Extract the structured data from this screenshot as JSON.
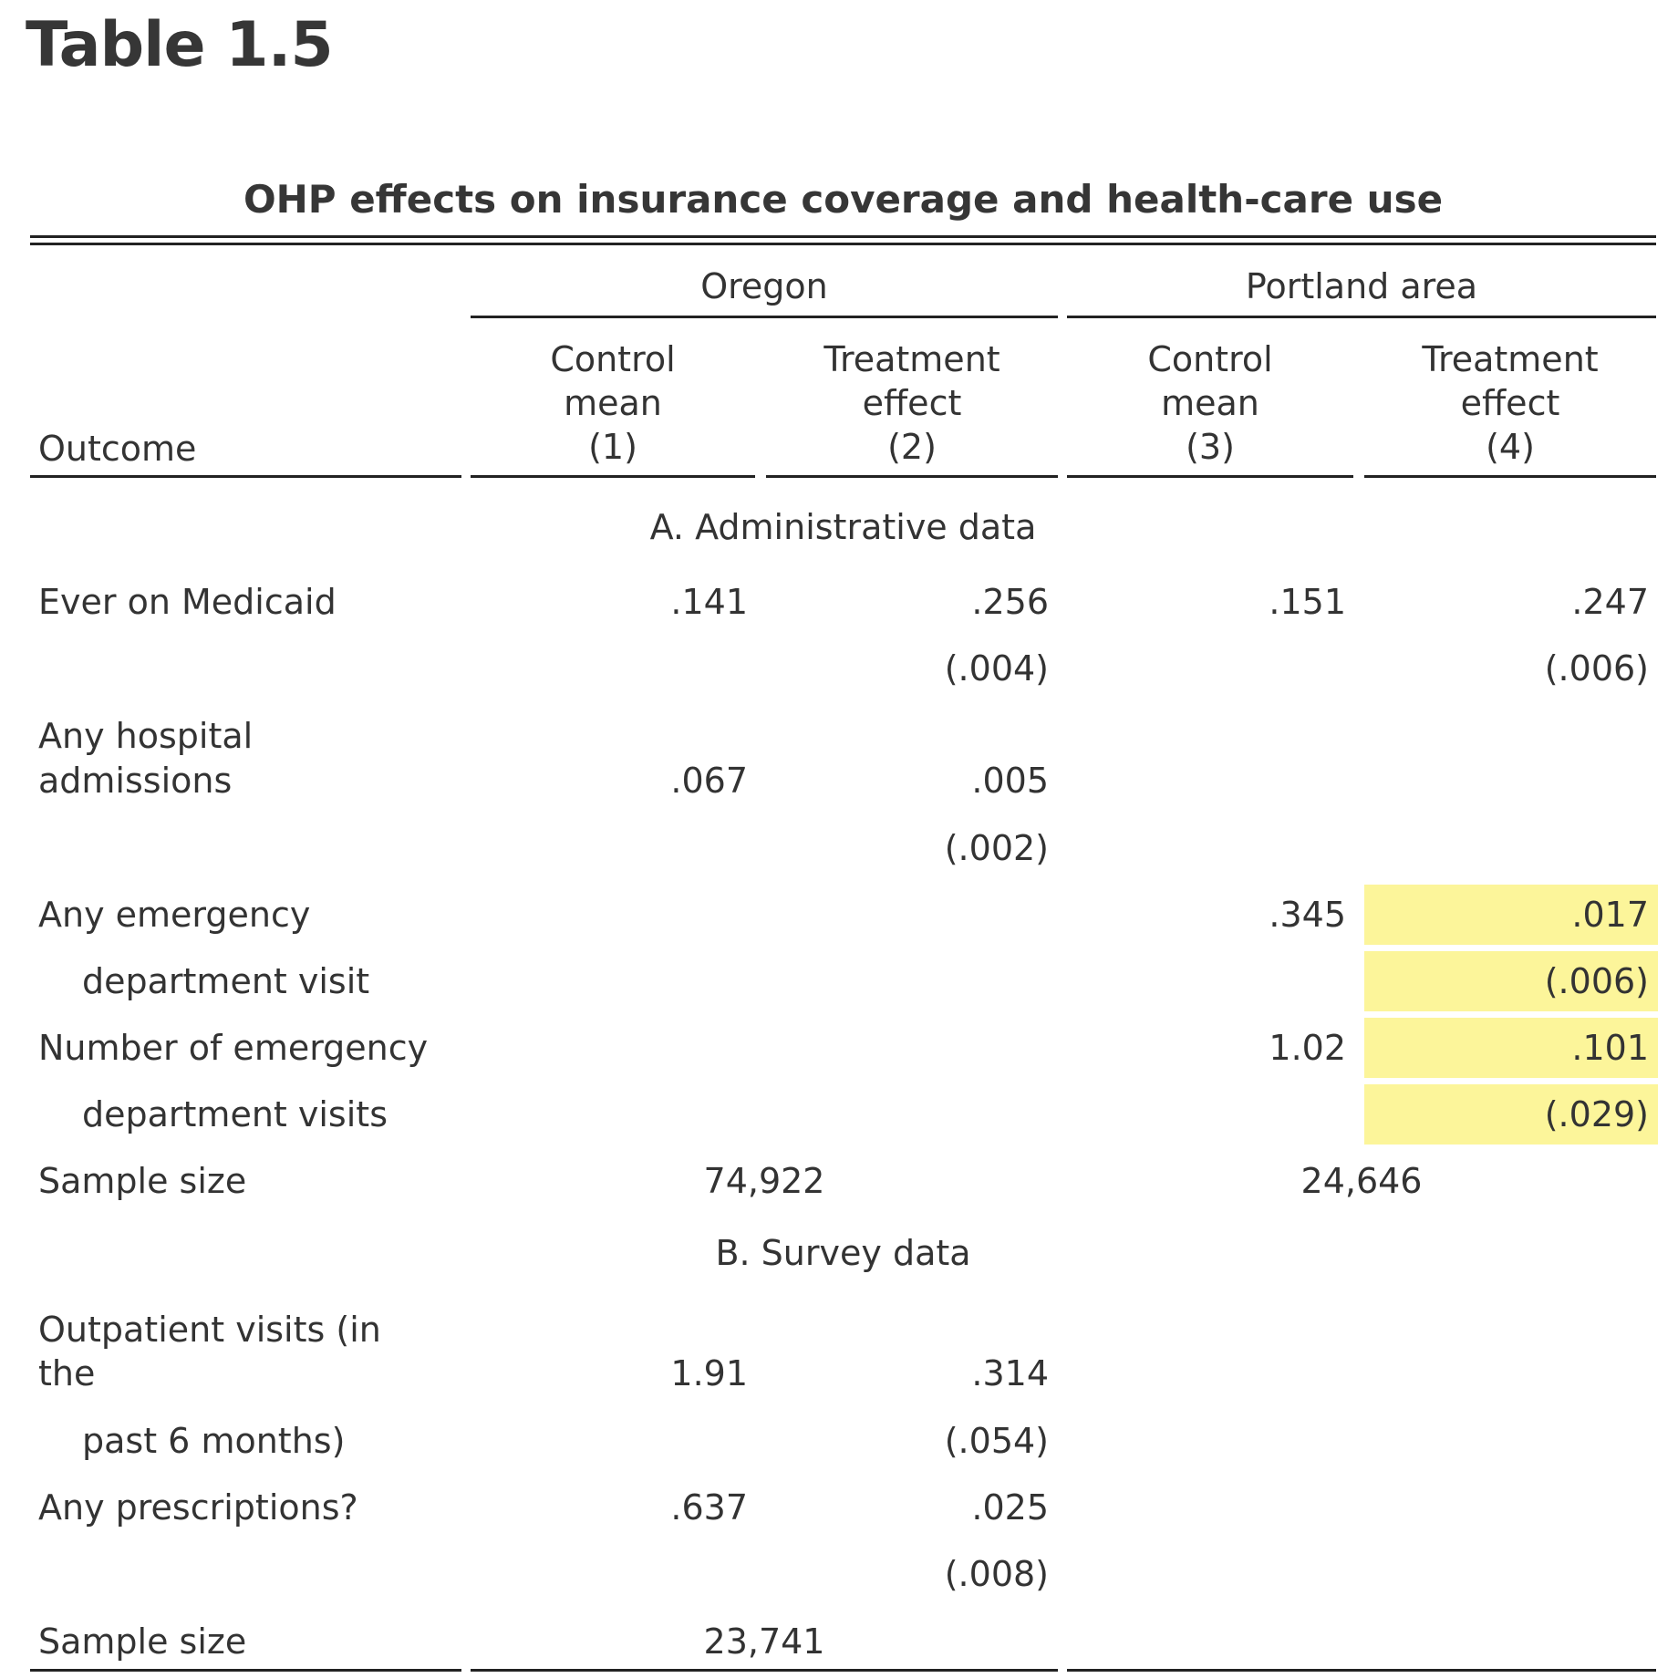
{
  "heading": "Table 1.5",
  "caption": "OHP effects on insurance coverage and health-care use",
  "groups": {
    "oregon": "Oregon",
    "portland": "Portland area"
  },
  "columns": {
    "outcome": "Outcome",
    "c1": [
      "Control",
      "mean",
      "(1)"
    ],
    "c2": [
      "Treatment",
      "effect",
      "(2)"
    ],
    "c3": [
      "Control",
      "mean",
      "(3)"
    ],
    "c4": [
      "Treatment",
      "effect",
      "(4)"
    ]
  },
  "panel_a": "A. Administrative data",
  "panel_b": "B. Survey data",
  "rows_a": {
    "medicaid": {
      "label": "Ever on Medicaid",
      "c1": ".141",
      "c2": ".256",
      "c2_se": "(.004)",
      "c3": ".151",
      "c4": ".247",
      "c4_se": "(.006)"
    },
    "hospital": {
      "label_1": "Any hospital",
      "label_2": "admissions",
      "c1": ".067",
      "c2": ".005",
      "c2_se": "(.002)"
    },
    "er_any": {
      "label_1": "Any emergency",
      "label_2": "department visit",
      "c3": ".345",
      "c4": ".017",
      "c4_se": "(.006)"
    },
    "er_num": {
      "label_1": "Number of emergency",
      "label_2": "department visits",
      "c3": "1.02",
      "c4": ".101",
      "c4_se": "(.029)"
    },
    "sample": {
      "label": "Sample size",
      "oregon": "74,922",
      "portland": "24,646"
    }
  },
  "rows_b": {
    "outpatient": {
      "label_1": "Outpatient visits (in",
      "label_2": "the",
      "label_3": "past 6 months)",
      "c1": "1.91",
      "c2": ".314",
      "c2_se": "(.054)"
    },
    "prescriptions": {
      "label": "Any prescriptions?",
      "c1": ".637",
      "c2": ".025",
      "c2_se": "(.008)"
    },
    "sample": {
      "label": "Sample size",
      "oregon": "23,741"
    }
  },
  "highlight_color": "#fcf59a"
}
